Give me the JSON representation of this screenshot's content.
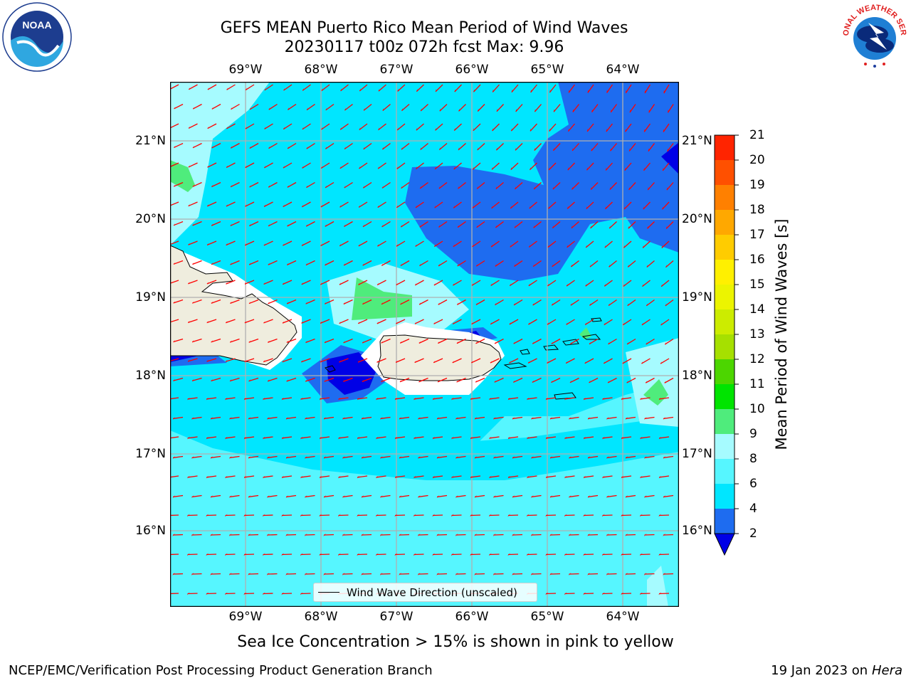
{
  "title": {
    "line1": "GEFS MEAN Puerto Rico Mean Period of Wind Waves",
    "line2": "20230117 t00z 072h fcst   Max: 9.96"
  },
  "axes": {
    "lon_labels": [
      "69°W",
      "68°W",
      "67°W",
      "66°W",
      "65°W",
      "64°W"
    ],
    "lat_labels": [
      "21°N",
      "20°N",
      "19°N",
      "18°N",
      "17°N",
      "16°N"
    ]
  },
  "colorbar": {
    "title": "Mean Period of Wind Waves [s]",
    "ticks": [
      "2",
      "4",
      "6",
      "8",
      "9",
      "10",
      "11",
      "12",
      "13",
      "14",
      "15",
      "16",
      "17",
      "18",
      "19",
      "20",
      "21"
    ],
    "colors": [
      "#1e6cf0",
      "#00e6ff",
      "#56f6ff",
      "#a6fbff",
      "#4fec7c",
      "#00e400",
      "#4cd600",
      "#a6e000",
      "#ccec00",
      "#ecf400",
      "#fff000",
      "#ffcc00",
      "#ffa800",
      "#ff8000",
      "#ff5000",
      "#ff2400"
    ],
    "under_color": "#0000e6",
    "over_color": "#ff0000"
  },
  "legend": {
    "label": "Wind Wave Direction (unscaled)"
  },
  "sea_ice_note": "Sea Ice Concentration > 15% is shown in pink to yellow",
  "footer": {
    "left": "NCEP/EMC/Verification Post Processing Product Generation Branch",
    "right_prefix": "19 Jan 2023 on ",
    "right_italic": "Hera"
  },
  "logos": {
    "left": {
      "text": "NOAA"
    },
    "right": {
      "text": "NATIONAL WEATHER SERVICE"
    }
  },
  "colors": {
    "land": "#efedde",
    "arrow": "#ff0000",
    "grid": "#b0b0b0"
  }
}
